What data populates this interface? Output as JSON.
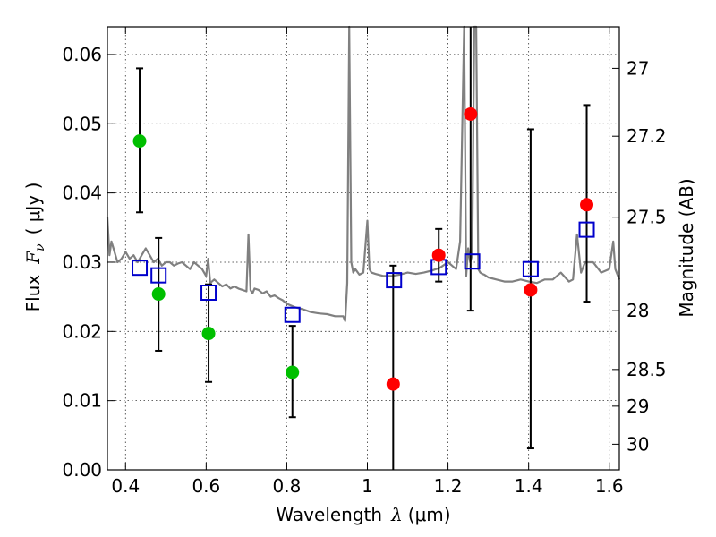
{
  "chart_data": {
    "type": "scatter",
    "xlabel_prefix": "Wavelength",
    "xlabel_symbol": "λ",
    "xlabel_unit": "(μm)",
    "ylabel_prefix": "Flux",
    "ylabel_symbol": "F",
    "ylabel_sub": "ν",
    "ylabel_unit": "( μJy )",
    "y2label": "Magnitude (AB)",
    "xlim": [
      0.355,
      1.625
    ],
    "ylim": [
      0.0,
      0.064
    ],
    "x_ticks": [
      0.4,
      0.6,
      0.8,
      1.0,
      1.2,
      1.4,
      1.6
    ],
    "x_tick_labels": [
      "0.4",
      "0.6",
      "0.8",
      "1",
      "1.2",
      "1.4",
      "1.6"
    ],
    "y_ticks": [
      0.0,
      0.01,
      0.02,
      0.03,
      0.04,
      0.05,
      0.06
    ],
    "y_tick_labels": [
      "0.00",
      "0.01",
      "0.02",
      "0.03",
      "0.04",
      "0.05",
      "0.06"
    ],
    "y2_ticks": [
      {
        "label": "27",
        "flux": 0.058
      },
      {
        "label": "27.2",
        "flux": 0.0482
      },
      {
        "label": "27.5",
        "flux": 0.0365
      },
      {
        "label": "28",
        "flux": 0.023
      },
      {
        "label": "28.5",
        "flux": 0.0145
      },
      {
        "label": "29",
        "flux": 0.0092
      },
      {
        "label": "30",
        "flux": 0.0037
      }
    ],
    "grid": true,
    "colors": {
      "green": "#00bf00",
      "red": "#ff0000",
      "model_box": "#0000cc",
      "sed": "#808080",
      "errorbar": "#000000"
    },
    "series": [
      {
        "name": "green_points",
        "color": "green",
        "points": [
          {
            "x": 0.435,
            "y": 0.0475,
            "yerr_lo": 0.0372,
            "yerr_hi": 0.058
          },
          {
            "x": 0.482,
            "y": 0.0254,
            "yerr_lo": 0.0172,
            "yerr_hi": 0.0335
          },
          {
            "x": 0.606,
            "y": 0.0197,
            "yerr_lo": 0.0127,
            "yerr_hi": 0.0268
          },
          {
            "x": 0.814,
            "y": 0.0141,
            "yerr_lo": 0.0076,
            "yerr_hi": 0.0208
          }
        ]
      },
      {
        "name": "red_points",
        "color": "red",
        "points": [
          {
            "x": 1.064,
            "y": 0.0124,
            "yerr_lo": 0.0,
            "yerr_hi": 0.0295
          },
          {
            "x": 1.177,
            "y": 0.031,
            "yerr_lo": 0.0272,
            "yerr_hi": 0.0348
          },
          {
            "x": 1.256,
            "y": 0.0514,
            "yerr_lo": 0.023,
            "yerr_hi": 0.064
          },
          {
            "x": 1.405,
            "y": 0.026,
            "yerr_lo": 0.0031,
            "yerr_hi": 0.0492
          },
          {
            "x": 1.544,
            "y": 0.0383,
            "yerr_lo": 0.0243,
            "yerr_hi": 0.0527
          }
        ]
      },
      {
        "name": "model_photometry",
        "color": "model_box",
        "points": [
          {
            "x": 0.435,
            "y": 0.0292
          },
          {
            "x": 0.482,
            "y": 0.0281
          },
          {
            "x": 0.606,
            "y": 0.0256
          },
          {
            "x": 0.814,
            "y": 0.0224
          },
          {
            "x": 1.066,
            "y": 0.0274
          },
          {
            "x": 1.177,
            "y": 0.0293
          },
          {
            "x": 1.26,
            "y": 0.0301
          },
          {
            "x": 1.405,
            "y": 0.029
          },
          {
            "x": 1.544,
            "y": 0.0347
          }
        ]
      },
      {
        "name": "sed_model",
        "color": "sed",
        "x": [
          0.355,
          0.36,
          0.365,
          0.37,
          0.38,
          0.39,
          0.4,
          0.41,
          0.42,
          0.43,
          0.44,
          0.45,
          0.46,
          0.47,
          0.48,
          0.49,
          0.5,
          0.51,
          0.52,
          0.53,
          0.54,
          0.55,
          0.56,
          0.57,
          0.58,
          0.59,
          0.6,
          0.605,
          0.61,
          0.62,
          0.63,
          0.64,
          0.65,
          0.66,
          0.67,
          0.68,
          0.69,
          0.7,
          0.705,
          0.71,
          0.715,
          0.72,
          0.73,
          0.74,
          0.75,
          0.76,
          0.77,
          0.78,
          0.79,
          0.8,
          0.82,
          0.84,
          0.86,
          0.88,
          0.9,
          0.92,
          0.94,
          0.945,
          0.95,
          0.955,
          0.96,
          0.965,
          0.97,
          0.98,
          0.99,
          1.0,
          1.005,
          1.01,
          1.02,
          1.04,
          1.06,
          1.08,
          1.1,
          1.12,
          1.14,
          1.16,
          1.18,
          1.2,
          1.21,
          1.22,
          1.23,
          1.24,
          1.245,
          1.25,
          1.255,
          1.26,
          1.265,
          1.27,
          1.275,
          1.28,
          1.285,
          1.29,
          1.295,
          1.3,
          1.32,
          1.34,
          1.36,
          1.38,
          1.4,
          1.42,
          1.44,
          1.46,
          1.48,
          1.5,
          1.51,
          1.52,
          1.53,
          1.54,
          1.56,
          1.58,
          1.6,
          1.61,
          1.615,
          1.625
        ],
        "y": [
          0.0365,
          0.031,
          0.033,
          0.032,
          0.03,
          0.0305,
          0.0315,
          0.0305,
          0.031,
          0.03,
          0.031,
          0.032,
          0.031,
          0.03,
          0.0305,
          0.0295,
          0.03,
          0.03,
          0.0295,
          0.0298,
          0.03,
          0.0295,
          0.029,
          0.03,
          0.0295,
          0.029,
          0.028,
          0.0305,
          0.027,
          0.0275,
          0.027,
          0.0265,
          0.0268,
          0.0262,
          0.0265,
          0.0262,
          0.026,
          0.0258,
          0.034,
          0.026,
          0.0255,
          0.0262,
          0.026,
          0.0255,
          0.0258,
          0.025,
          0.0252,
          0.0248,
          0.0245,
          0.024,
          0.0235,
          0.0232,
          0.0228,
          0.0226,
          0.0225,
          0.0222,
          0.0222,
          0.0215,
          0.027,
          0.064,
          0.03,
          0.0285,
          0.029,
          0.0282,
          0.0285,
          0.036,
          0.029,
          0.0285,
          0.0283,
          0.028,
          0.028,
          0.0282,
          0.0285,
          0.0283,
          0.0285,
          0.0288,
          0.0292,
          0.03,
          0.0295,
          0.029,
          0.033,
          0.064,
          0.028,
          0.032,
          0.03,
          0.031,
          0.064,
          0.064,
          0.029,
          0.0285,
          0.0283,
          0.0282,
          0.028,
          0.0278,
          0.0275,
          0.0272,
          0.0272,
          0.0275,
          0.0272,
          0.027,
          0.0275,
          0.0275,
          0.0285,
          0.0272,
          0.0275,
          0.034,
          0.0285,
          0.03,
          0.03,
          0.0285,
          0.029,
          0.033,
          0.029,
          0.0275
        ]
      }
    ]
  }
}
